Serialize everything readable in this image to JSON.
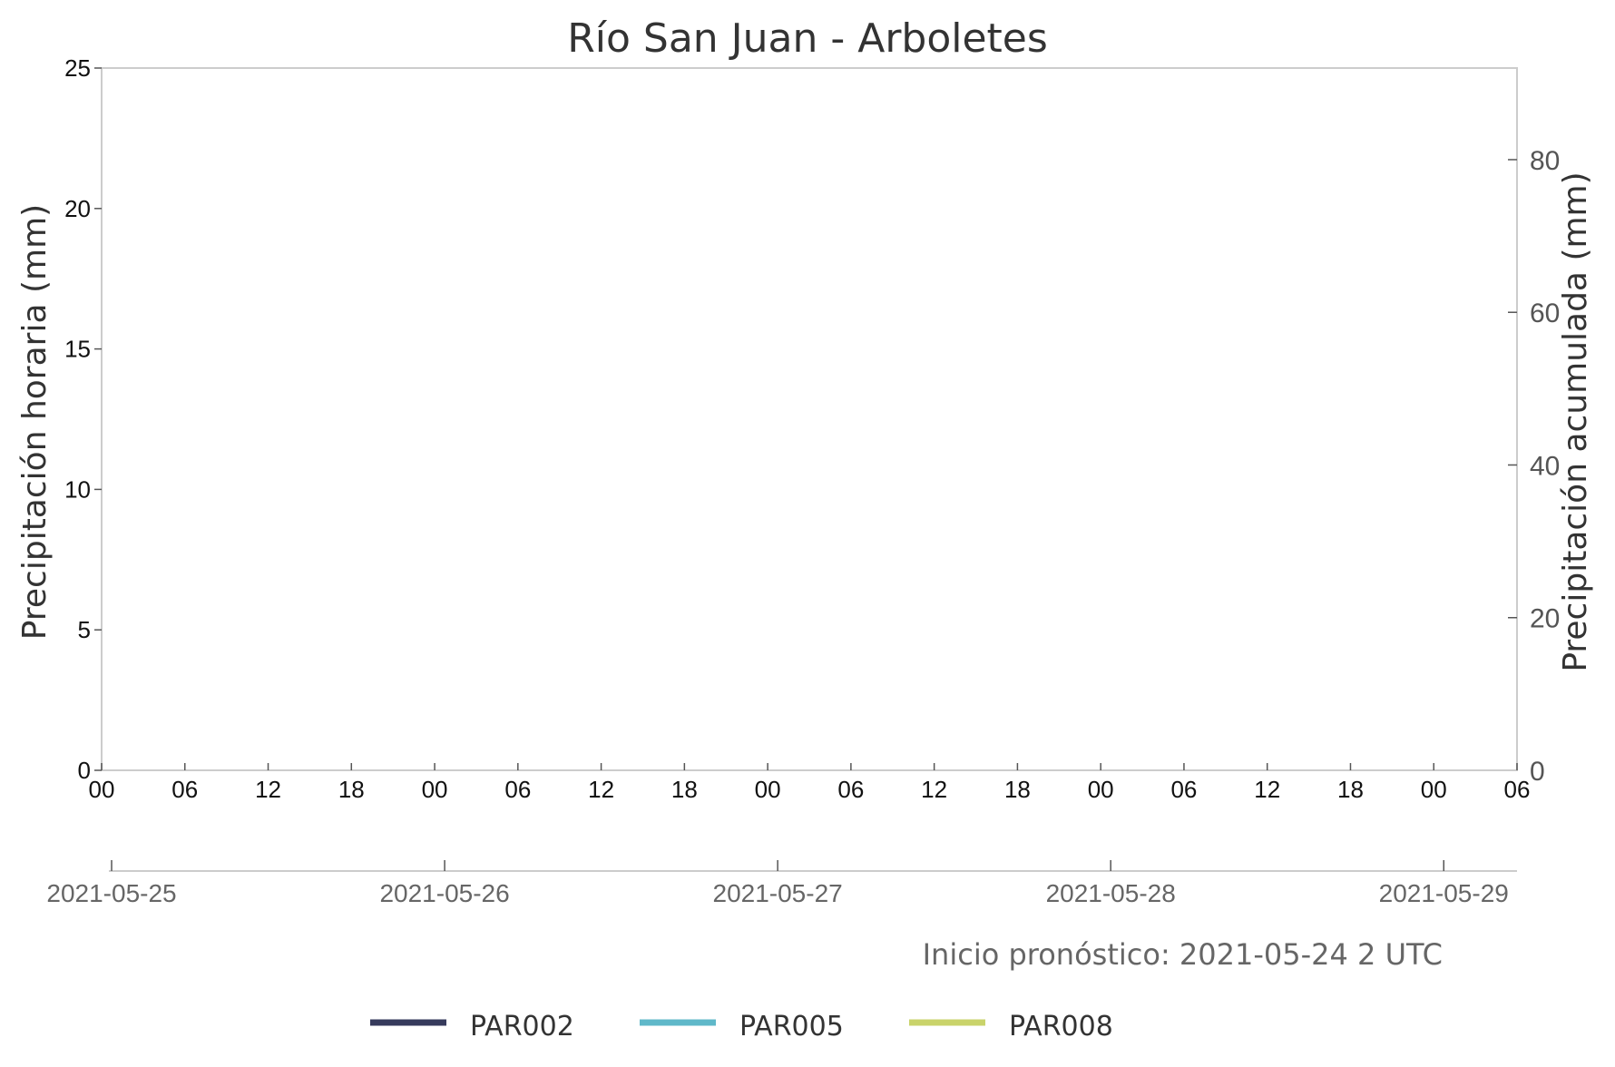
{
  "chart_data": {
    "type": "line",
    "title": "Río San Juan - Arboletes",
    "ylabel_left": "Precipitación horaria (mm)",
    "ylabel_right": "Precipitación acumulada (mm)",
    "xlabel": "",
    "ylim_left": [
      0,
      25
    ],
    "ylim_right": [
      0,
      92
    ],
    "yticks_left": [
      0,
      5,
      10,
      15,
      20,
      25
    ],
    "yticks_right": [
      0,
      20,
      40,
      60,
      80
    ],
    "x_start": "2021-05-25 00",
    "x_end": "2021-05-29 06",
    "hour_ticks": [
      "00",
      "06",
      "12",
      "18",
      "00",
      "06",
      "12",
      "18",
      "00",
      "06",
      "12",
      "18",
      "00",
      "06",
      "12",
      "18",
      "00",
      "06"
    ],
    "date_ticks": [
      "2021-05-25",
      "2021-05-26",
      "2021-05-27",
      "2021-05-28",
      "2021-05-29"
    ],
    "grid": false,
    "legend_position": "bottom",
    "series": [
      {
        "name": "PAR002",
        "color": "#363a5c",
        "values": []
      },
      {
        "name": "PAR005",
        "color": "#5fb8c9",
        "values": []
      },
      {
        "name": "PAR008",
        "color": "#c9d36a",
        "values": []
      }
    ]
  },
  "forecast_note": "Inicio pronóstico: 2021-05-24 2 UTC",
  "colors": {
    "axis": "#cccccc",
    "text": "#333333"
  }
}
